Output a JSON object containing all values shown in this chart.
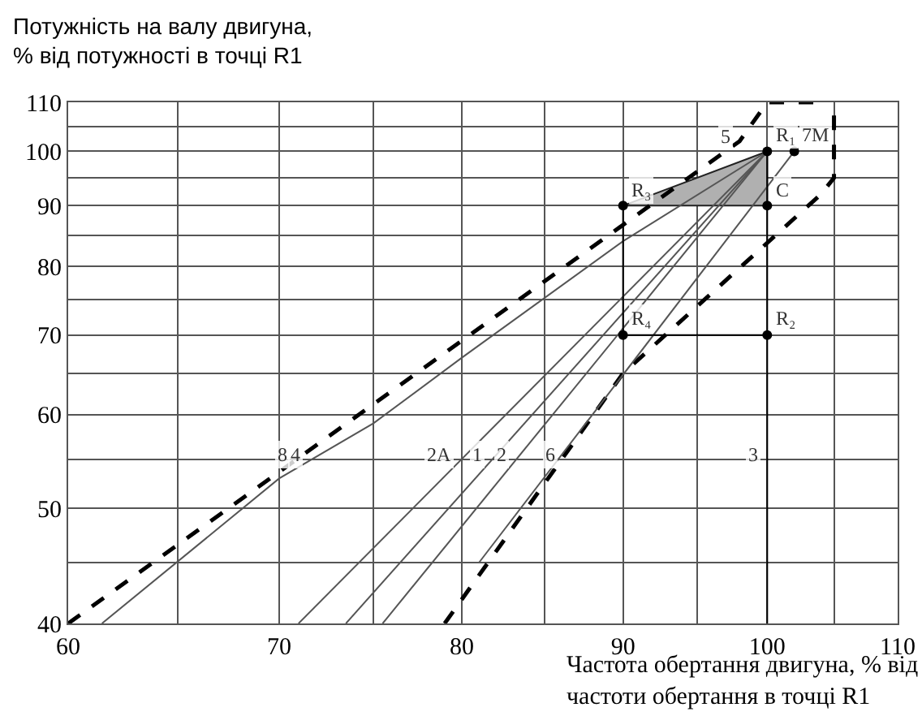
{
  "chart_data": {
    "type": "line",
    "xlabel": "Частота обертання двигуна, % від\nчастоти обертання в точці R1",
    "ylabel": "Потужність на валу двигуна,\n% від потужності в точці R1",
    "log": "xy",
    "grid": true,
    "xlim": [
      60,
      110
    ],
    "xticks": [
      60,
      {
        "value": 65,
        "label": null
      },
      70,
      {
        "value": 75,
        "label": null
      },
      80,
      {
        "value": 85,
        "label": null
      },
      90,
      {
        "value": 95,
        "label": null
      },
      100,
      {
        "value": 105,
        "label": null
      },
      110
    ],
    "ylim": [
      40,
      110
    ],
    "yticks": [
      40,
      {
        "value": 45,
        "label": null
      },
      50,
      {
        "value": 55,
        "label": null
      },
      60,
      {
        "value": 65,
        "label": null
      },
      70,
      {
        "value": 75,
        "label": null
      },
      80,
      {
        "value": 85,
        "label": null
      },
      90,
      {
        "value": 95,
        "label": null
      },
      100,
      {
        "value": 105,
        "label": null
      },
      110
    ],
    "series": [
      {
        "type": "area",
        "color": "#b0b0b0",
        "x": [
          90,
          100,
          100,
          90
        ],
        "values": [
          90,
          100,
          90,
          90
        ]
      },
      {
        "line_style": "dashed",
        "color": "#000000",
        "x": [
          60,
          98,
          100,
          104
        ],
        "values": [
          40,
          102,
          110,
          110
        ]
      },
      {
        "line_style": "dashed",
        "color": "#000000",
        "x": [
          79,
          90,
          104,
          105,
          105
        ],
        "values": [
          40,
          65,
          92,
          95,
          110
        ]
      },
      {
        "line_style": "solid",
        "color": "#555555",
        "x": [
          61.5,
          70,
          75,
          80,
          90,
          100
        ],
        "values": [
          40,
          53,
          59,
          67,
          84,
          100
        ]
      },
      {
        "line_style": "solid",
        "color": "#555555",
        "x": [
          71,
          100
        ],
        "values": [
          40,
          100
        ]
      },
      {
        "line_style": "solid",
        "color": "#555555",
        "x": [
          73.5,
          100
        ],
        "values": [
          40,
          100
        ]
      },
      {
        "line_style": "solid",
        "color": "#555555",
        "x": [
          75.5,
          100
        ],
        "values": [
          40,
          100
        ]
      },
      {
        "line_style": "solid",
        "color": "#555555",
        "x": [
          81,
          102
        ],
        "values": [
          45,
          100
        ]
      },
      {
        "line_style": "solid",
        "color": "#000000",
        "x": [
          100,
          100
        ],
        "values": [
          40,
          100
        ]
      },
      {
        "line_style": "solid",
        "color": "#000000",
        "x": [
          90,
          100
        ],
        "values": [
          70,
          70
        ]
      },
      {
        "line_style": "solid",
        "color": "#000000",
        "x": [
          90,
          90
        ],
        "values": [
          70,
          90
        ]
      },
      {
        "type": "scatter",
        "marker": "circle",
        "color": "#000000",
        "x": [
          100,
          100,
          90,
          90,
          100,
          102
        ],
        "values": [
          100,
          70,
          90,
          70,
          90,
          100
        ]
      }
    ],
    "annotations": [
      {
        "text": "8",
        "x": 70.9,
        "y": 55
      },
      {
        "text": "4",
        "x": 71.6,
        "y": 55
      },
      {
        "text": "2A",
        "x": 79.95,
        "y": 55
      },
      {
        "text": "1",
        "x": 81.8,
        "y": 55
      },
      {
        "text": "2",
        "x": 83.2,
        "y": 55
      },
      {
        "text": "6",
        "x": 86.3,
        "y": 55
      },
      {
        "text": "3",
        "x": 100,
        "y": 55
      },
      {
        "text": "R₁",
        "x": 100,
        "y": 100
      },
      {
        "text": "7M",
        "x": 102,
        "y": 100
      },
      {
        "text": "5",
        "x": 98,
        "y": 102
      },
      {
        "text": "R₃",
        "x": 90,
        "y": 90
      },
      {
        "text": "C",
        "x": 100,
        "y": 90
      },
      {
        "text": "R₄",
        "x": 90,
        "y": 70
      },
      {
        "text": "R₂",
        "x": 100,
        "y": 70
      }
    ]
  }
}
